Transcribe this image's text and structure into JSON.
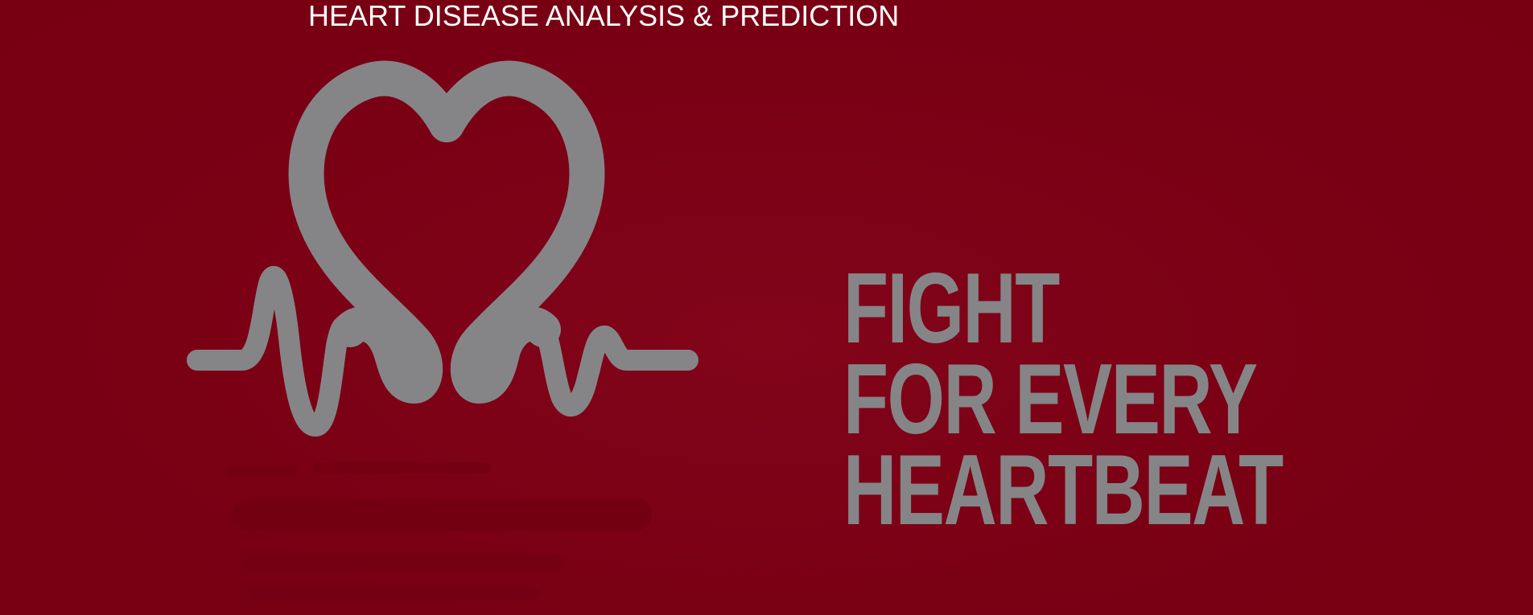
{
  "page": {
    "title": "HEART DISEASE ANALYSIS & PREDICTION"
  },
  "banner": {
    "logo_icon": "heart-heartbeat-icon",
    "slogan_lines": [
      "FIGHT",
      "FOR EVERY",
      "HEARTBEAT"
    ]
  },
  "colors": {
    "background": "#7a0014",
    "title_text": "#ffffff",
    "logo_and_slogan": "#858587"
  }
}
